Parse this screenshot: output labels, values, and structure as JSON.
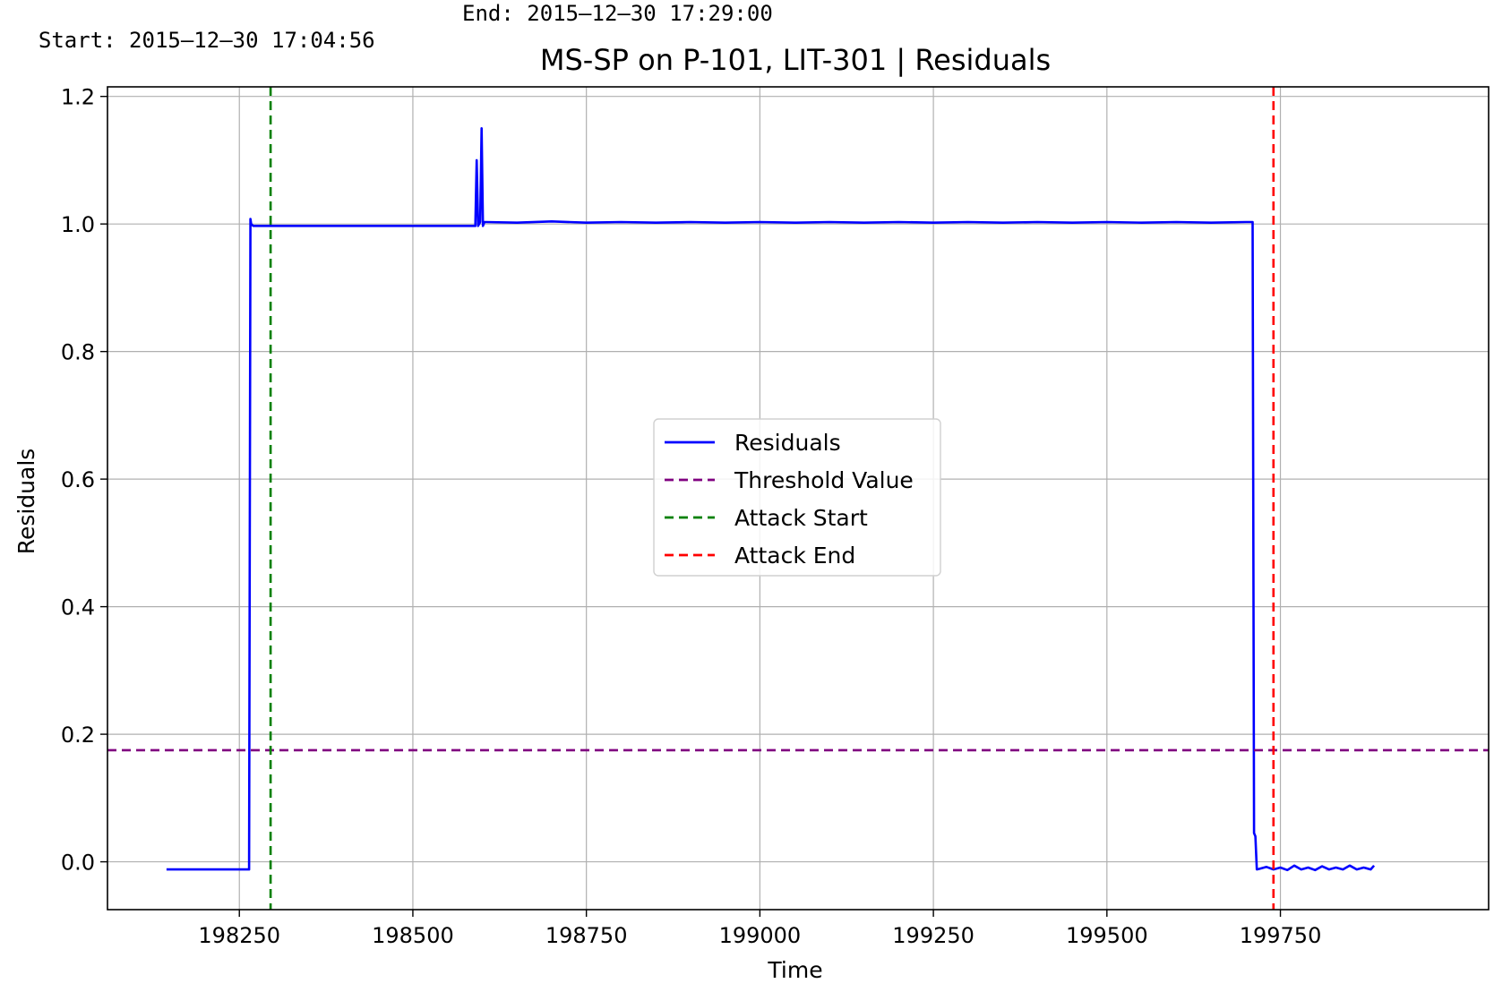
{
  "header": {
    "start": "Start: 2015–12–30 17:04:56",
    "end": "End: 2015–12–30 17:29:00"
  },
  "chart_data": {
    "type": "line",
    "title": "MS-SP  on  P-101, LIT-301  |  Residuals",
    "xlabel": "Time",
    "ylabel": "Residuals",
    "xlim": [
      198060,
      200050
    ],
    "ylim": [
      -0.075,
      1.215
    ],
    "xticks": [
      198250,
      198500,
      198750,
      199000,
      199250,
      199500,
      199750
    ],
    "yticks": [
      0.0,
      0.2,
      0.4,
      0.6,
      0.8,
      1.0,
      1.2
    ],
    "ytick_labels": [
      "0.0",
      "0.2",
      "0.4",
      "0.6",
      "0.8",
      "1.0",
      "1.2"
    ],
    "grid": true,
    "legend_position": "center",
    "series": [
      {
        "name": "Residuals",
        "color": "#0000ff",
        "style": "solid",
        "x": [
          198145,
          198264,
          198266,
          198267,
          198270,
          198280,
          198590,
          198592,
          198594,
          198597,
          198599,
          198601,
          198603,
          198605,
          198650,
          198700,
          198750,
          198800,
          198850,
          198900,
          198950,
          199000,
          199050,
          199100,
          199150,
          199200,
          199250,
          199300,
          199350,
          199400,
          199450,
          199500,
          199550,
          199600,
          199650,
          199700,
          199710,
          199712,
          199714,
          199716,
          199720,
          199730,
          199740,
          199750,
          199760,
          199770,
          199780,
          199790,
          199800,
          199810,
          199820,
          199830,
          199840,
          199850,
          199860,
          199870,
          199880,
          199885
        ],
        "values": [
          -0.012,
          -0.012,
          1.008,
          1.0,
          0.997,
          0.997,
          0.997,
          1.1,
          0.997,
          1.003,
          1.15,
          0.997,
          1.003,
          1.003,
          1.002,
          1.004,
          1.002,
          1.003,
          1.002,
          1.003,
          1.002,
          1.003,
          1.002,
          1.003,
          1.002,
          1.003,
          1.002,
          1.003,
          1.002,
          1.003,
          1.002,
          1.003,
          1.002,
          1.003,
          1.002,
          1.003,
          1.003,
          0.045,
          0.04,
          -0.012,
          -0.011,
          -0.008,
          -0.012,
          -0.009,
          -0.013,
          -0.006,
          -0.012,
          -0.009,
          -0.013,
          -0.007,
          -0.012,
          -0.009,
          -0.012,
          -0.006,
          -0.012,
          -0.009,
          -0.012,
          -0.006
        ]
      },
      {
        "name": "Threshold Value",
        "color": "#800080",
        "style": "dashed",
        "orientation": "horizontal",
        "value": 0.175
      },
      {
        "name": "Attack Start",
        "color": "#008000",
        "style": "dashed",
        "orientation": "vertical",
        "value": 198295
      },
      {
        "name": "Attack End",
        "color": "#ff0000",
        "style": "dashed",
        "orientation": "vertical",
        "value": 199740
      }
    ]
  }
}
